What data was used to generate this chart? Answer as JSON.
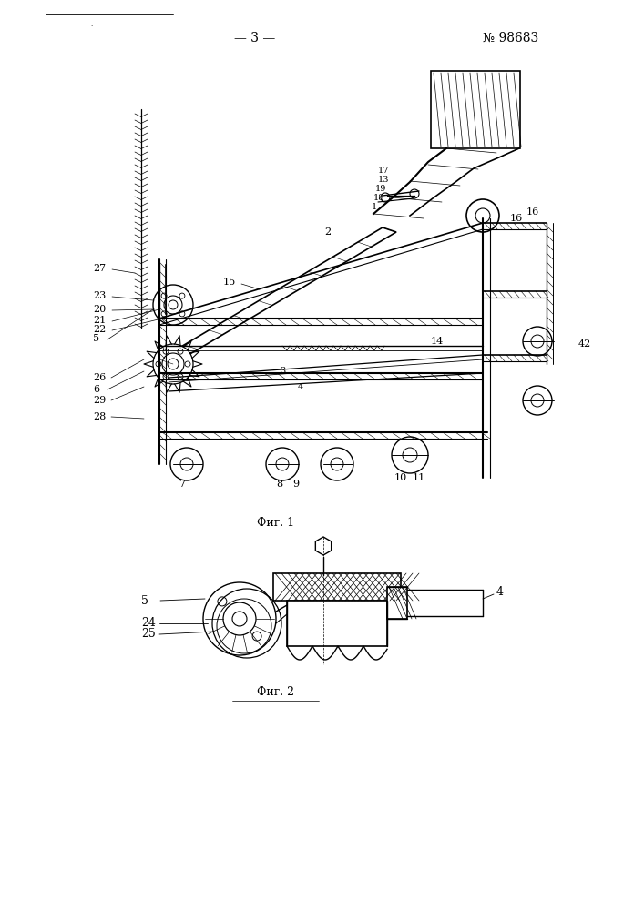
{
  "page_number": "— 3 —",
  "patent_number": "№ 98683",
  "fig1_caption": "Фиг. 1",
  "fig2_caption": "Фиг. 2",
  "bg_color": "#ffffff"
}
